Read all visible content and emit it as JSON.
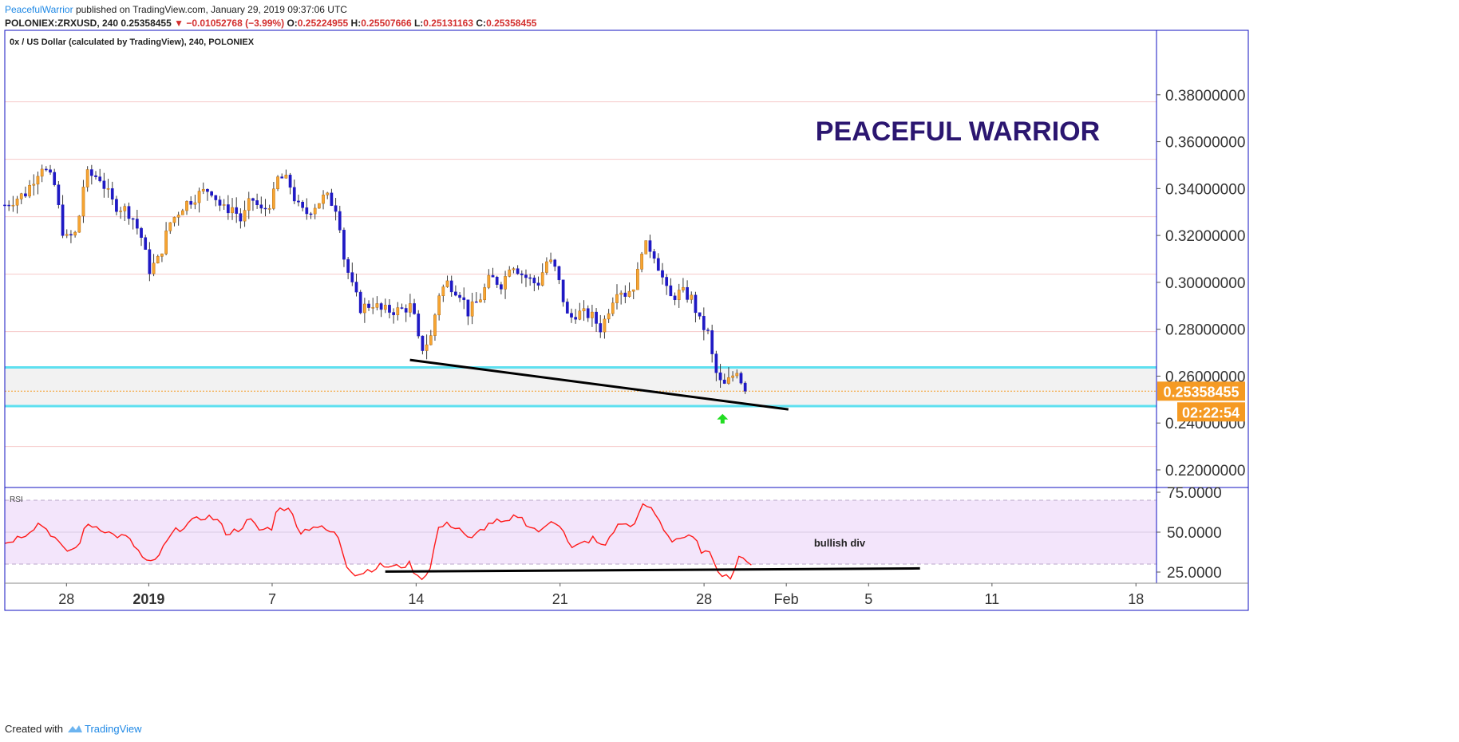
{
  "header": {
    "author": "PeacefulWarrior",
    "published": "published on TradingView.com, January 29, 2019 09:37:06 UTC",
    "symbol": "POLONIEX:ZRXUSD, 240",
    "last": "0.25358455",
    "change": "▼ −0.01052768 (−3.99%)",
    "o_label": "O:",
    "o": "0.25224955",
    "h_label": "H:",
    "h": "0.25507666",
    "l_label": "L:",
    "l": "0.25131163",
    "c_label": "C:",
    "c": "0.25358455"
  },
  "chart_data": [
    {
      "type": "candlestick",
      "title": "0x / US Dollar (calculated by TradingView), 240, POLONIEX",
      "interval": "240",
      "ylim": [
        0.2125,
        0.4075
      ],
      "price_ticks": [
        "0.38000000",
        "0.36000000",
        "0.34000000",
        "0.32000000",
        "0.30000000",
        "0.28000000",
        "0.26000000",
        "0.24000000",
        "0.22000000"
      ],
      "price_tick_values": [
        0.38,
        0.36,
        0.34,
        0.32,
        0.3,
        0.28,
        0.26,
        0.24,
        0.22
      ],
      "x_ticks": [
        "28",
        "2019",
        "7",
        "14",
        "21",
        "28",
        "Feb",
        "5",
        "11",
        "18"
      ],
      "x_tick_days": [
        -4,
        0,
        6,
        13,
        20,
        27,
        31,
        35,
        41,
        48
      ],
      "xlim_days": [
        -7,
        49
      ],
      "current_price": "0.25358455",
      "current_price_value": 0.25358455,
      "countdown": "02:22:54",
      "support_zone": [
        0.2472,
        0.2637
      ],
      "trendline": [
        {
          "day": 12.7,
          "price": 0.2669
        },
        {
          "day": 31.1,
          "price": 0.2458
        }
      ],
      "annotation_title": "PEACEFUL WARRIOR",
      "signal": {
        "type": "up-arrow",
        "day": 27.9,
        "price": 0.2415
      },
      "grid": true,
      "anchors": [
        {
          "d": -7.0,
          "p": 0.333
        },
        {
          "d": -6.0,
          "p": 0.338
        },
        {
          "d": -5.2,
          "p": 0.35
        },
        {
          "d": -4.6,
          "p": 0.342
        },
        {
          "d": -4.1,
          "p": 0.318
        },
        {
          "d": -3.5,
          "p": 0.321
        },
        {
          "d": -3.1,
          "p": 0.346
        },
        {
          "d": -2.4,
          "p": 0.345
        },
        {
          "d": -1.7,
          "p": 0.333
        },
        {
          "d": -1.1,
          "p": 0.331
        },
        {
          "d": -0.8,
          "p": 0.328
        },
        {
          "d": -0.3,
          "p": 0.318
        },
        {
          "d": 0.0,
          "p": 0.305
        },
        {
          "d": 0.5,
          "p": 0.31
        },
        {
          "d": 1.0,
          "p": 0.325
        },
        {
          "d": 1.7,
          "p": 0.333
        },
        {
          "d": 2.5,
          "p": 0.338
        },
        {
          "d": 3.0,
          "p": 0.34
        },
        {
          "d": 3.6,
          "p": 0.331
        },
        {
          "d": 4.1,
          "p": 0.332
        },
        {
          "d": 4.5,
          "p": 0.326
        },
        {
          "d": 5.0,
          "p": 0.336
        },
        {
          "d": 5.5,
          "p": 0.33
        },
        {
          "d": 6.0,
          "p": 0.335
        },
        {
          "d": 6.3,
          "p": 0.345
        },
        {
          "d": 6.8,
          "p": 0.343
        },
        {
          "d": 7.2,
          "p": 0.333
        },
        {
          "d": 7.6,
          "p": 0.329
        },
        {
          "d": 8.1,
          "p": 0.333
        },
        {
          "d": 8.6,
          "p": 0.337
        },
        {
          "d": 9.2,
          "p": 0.331
        },
        {
          "d": 9.5,
          "p": 0.31
        },
        {
          "d": 9.9,
          "p": 0.298
        },
        {
          "d": 10.3,
          "p": 0.289
        },
        {
          "d": 10.9,
          "p": 0.291
        },
        {
          "d": 11.3,
          "p": 0.288
        },
        {
          "d": 12.2,
          "p": 0.288
        },
        {
          "d": 12.8,
          "p": 0.29
        },
        {
          "d": 13.2,
          "p": 0.271
        },
        {
          "d": 13.7,
          "p": 0.276
        },
        {
          "d": 14.1,
          "p": 0.295
        },
        {
          "d": 14.5,
          "p": 0.3
        },
        {
          "d": 15.2,
          "p": 0.295
        },
        {
          "d": 15.5,
          "p": 0.287
        },
        {
          "d": 16.1,
          "p": 0.293
        },
        {
          "d": 16.6,
          "p": 0.302
        },
        {
          "d": 17.2,
          "p": 0.299
        },
        {
          "d": 17.6,
          "p": 0.309
        },
        {
          "d": 18.2,
          "p": 0.303
        },
        {
          "d": 18.9,
          "p": 0.299
        },
        {
          "d": 19.4,
          "p": 0.31
        },
        {
          "d": 19.8,
          "p": 0.305
        },
        {
          "d": 20.4,
          "p": 0.284
        },
        {
          "d": 20.8,
          "p": 0.287
        },
        {
          "d": 21.5,
          "p": 0.286
        },
        {
          "d": 22.0,
          "p": 0.28
        },
        {
          "d": 22.5,
          "p": 0.292
        },
        {
          "d": 22.8,
          "p": 0.298
        },
        {
          "d": 23.2,
          "p": 0.295
        },
        {
          "d": 23.7,
          "p": 0.3
        },
        {
          "d": 24.0,
          "p": 0.316
        },
        {
          "d": 24.5,
          "p": 0.314
        },
        {
          "d": 24.9,
          "p": 0.304
        },
        {
          "d": 25.3,
          "p": 0.293
        },
        {
          "d": 25.9,
          "p": 0.296
        },
        {
          "d": 26.4,
          "p": 0.293
        },
        {
          "d": 26.8,
          "p": 0.283
        },
        {
          "d": 27.2,
          "p": 0.278
        },
        {
          "d": 27.5,
          "p": 0.263
        },
        {
          "d": 27.9,
          "p": 0.255
        },
        {
          "d": 28.3,
          "p": 0.259
        },
        {
          "d": 28.6,
          "p": 0.263
        },
        {
          "d": 29.0,
          "p": 0.2536
        }
      ],
      "candle_count": 180
    },
    {
      "type": "line",
      "title": "RSI",
      "ylim": [
        18,
        78
      ],
      "ticks": [
        "75.0000",
        "50.0000",
        "25.0000"
      ],
      "tick_values": [
        75,
        50,
        25
      ],
      "band": [
        30,
        70
      ],
      "trendline": [
        {
          "day": 11.5,
          "value": 25.3
        },
        {
          "day": 37.5,
          "value": 27.3
        }
      ],
      "annotation": "bullish div",
      "anchors": [
        {
          "d": -7.0,
          "v": 43
        },
        {
          "d": -6.0,
          "v": 49
        },
        {
          "d": -5.3,
          "v": 56
        },
        {
          "d": -4.6,
          "v": 47
        },
        {
          "d": -4.1,
          "v": 38
        },
        {
          "d": -3.5,
          "v": 40
        },
        {
          "d": -3.0,
          "v": 55
        },
        {
          "d": -2.4,
          "v": 53
        },
        {
          "d": -1.7,
          "v": 48
        },
        {
          "d": -1.1,
          "v": 47
        },
        {
          "d": -0.6,
          "v": 40
        },
        {
          "d": -0.2,
          "v": 32
        },
        {
          "d": 0.2,
          "v": 30
        },
        {
          "d": 0.7,
          "v": 40
        },
        {
          "d": 1.2,
          "v": 50
        },
        {
          "d": 2.0,
          "v": 56
        },
        {
          "d": 2.8,
          "v": 60
        },
        {
          "d": 3.3,
          "v": 58
        },
        {
          "d": 3.8,
          "v": 49
        },
        {
          "d": 4.4,
          "v": 52
        },
        {
          "d": 4.9,
          "v": 58
        },
        {
          "d": 5.4,
          "v": 51
        },
        {
          "d": 6.0,
          "v": 53
        },
        {
          "d": 6.3,
          "v": 67
        },
        {
          "d": 6.9,
          "v": 63
        },
        {
          "d": 7.4,
          "v": 50
        },
        {
          "d": 8.0,
          "v": 54
        },
        {
          "d": 8.5,
          "v": 52
        },
        {
          "d": 9.2,
          "v": 48
        },
        {
          "d": 9.6,
          "v": 30
        },
        {
          "d": 10.1,
          "v": 23
        },
        {
          "d": 10.6,
          "v": 26
        },
        {
          "d": 11.3,
          "v": 29
        },
        {
          "d": 12.0,
          "v": 28
        },
        {
          "d": 12.7,
          "v": 30
        },
        {
          "d": 13.1,
          "v": 21
        },
        {
          "d": 13.6,
          "v": 24
        },
        {
          "d": 14.1,
          "v": 53
        },
        {
          "d": 14.6,
          "v": 55
        },
        {
          "d": 15.2,
          "v": 52
        },
        {
          "d": 15.6,
          "v": 44
        },
        {
          "d": 16.2,
          "v": 52
        },
        {
          "d": 16.8,
          "v": 57
        },
        {
          "d": 17.4,
          "v": 55
        },
        {
          "d": 17.9,
          "v": 61
        },
        {
          "d": 18.6,
          "v": 53
        },
        {
          "d": 19.1,
          "v": 50
        },
        {
          "d": 19.6,
          "v": 58
        },
        {
          "d": 20.1,
          "v": 54
        },
        {
          "d": 20.5,
          "v": 39
        },
        {
          "d": 21.1,
          "v": 43
        },
        {
          "d": 21.6,
          "v": 46
        },
        {
          "d": 22.1,
          "v": 40
        },
        {
          "d": 22.6,
          "v": 51
        },
        {
          "d": 23.0,
          "v": 56
        },
        {
          "d": 23.4,
          "v": 53
        },
        {
          "d": 23.8,
          "v": 60
        },
        {
          "d": 24.1,
          "v": 68
        },
        {
          "d": 24.6,
          "v": 62
        },
        {
          "d": 25.0,
          "v": 53
        },
        {
          "d": 25.4,
          "v": 45
        },
        {
          "d": 26.0,
          "v": 47
        },
        {
          "d": 26.5,
          "v": 46
        },
        {
          "d": 26.9,
          "v": 38
        },
        {
          "d": 27.4,
          "v": 35
        },
        {
          "d": 27.7,
          "v": 26
        },
        {
          "d": 28.1,
          "v": 22
        },
        {
          "d": 28.4,
          "v": 23
        },
        {
          "d": 28.7,
          "v": 36
        },
        {
          "d": 29.0,
          "v": 30
        },
        {
          "d": 29.3,
          "v": 31
        }
      ]
    }
  ],
  "footer": {
    "created_with": "Created with",
    "brand": "TradingView"
  },
  "colors": {
    "up_body": "#f7a532",
    "down_body": "#1f19c4",
    "wick": "#3a3a3a",
    "rsi_line": "#ff1a1a",
    "rsi_band": "#f3e5fb",
    "support_line": "#5ee0f0",
    "zone_fill": "#f2f2f2",
    "price_label_bg": "#f59a23",
    "title_color": "#2b1670",
    "arrow_color": "#22dd22",
    "pane_border": "#1010c0"
  }
}
